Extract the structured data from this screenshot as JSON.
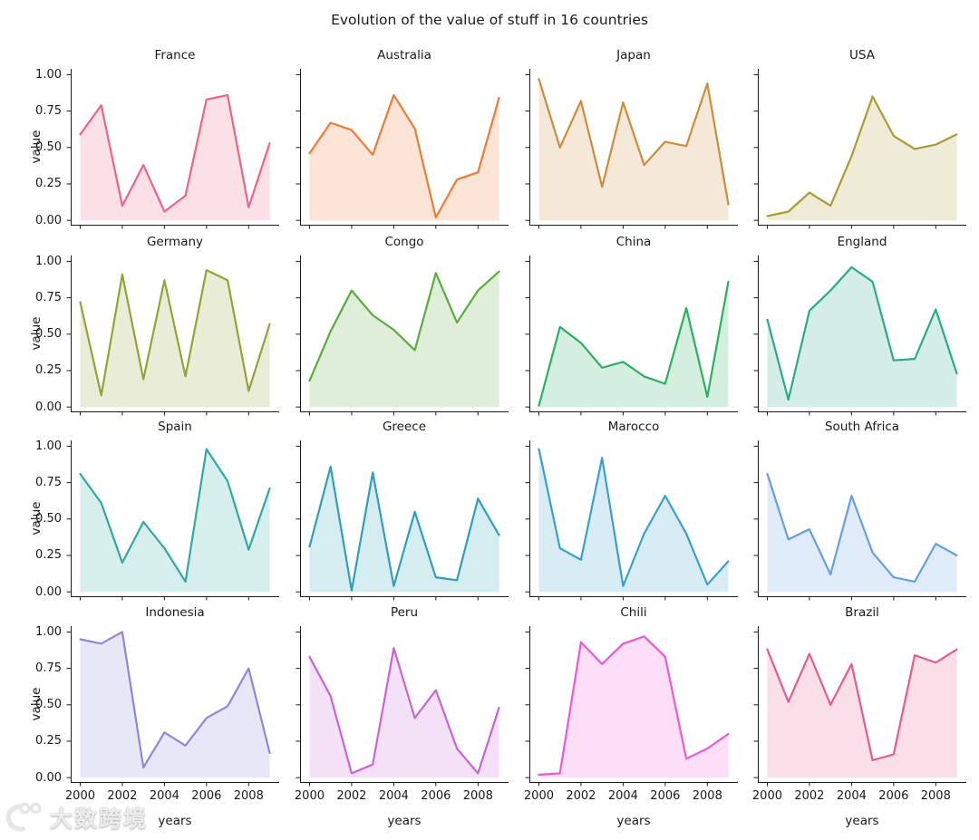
{
  "figure_title": "Evolution of the value of stuff in 16 countries",
  "axis": {
    "ylabel": "value",
    "xlabel": "years",
    "ytick_labels": [
      "1.00",
      "0.75",
      "0.50",
      "0.25",
      "0.00"
    ],
    "ytick_values": [
      1.0,
      0.75,
      0.5,
      0.25,
      0.0
    ],
    "xtick_labels": [
      "2000",
      "2002",
      "2004",
      "2006",
      "2008"
    ],
    "xtick_values": [
      2000,
      2002,
      2004,
      2006,
      2008
    ]
  },
  "watermark": {
    "text": "大数跨境",
    "logo": "100-swirl-icon"
  },
  "chart_data": {
    "type": "area",
    "layout": "4x4 small multiples",
    "title": "Evolution of the value of stuff in 16 countries",
    "xlabel": "years",
    "ylabel": "value",
    "ylim": [
      0.0,
      1.0
    ],
    "grid": false,
    "legend": "none",
    "x": [
      2000,
      2001,
      2002,
      2003,
      2004,
      2005,
      2006,
      2007,
      2008,
      2009
    ],
    "series": [
      {
        "name": "France",
        "color": "#ec6486",
        "values": [
          0.59,
          0.79,
          0.1,
          0.38,
          0.06,
          0.17,
          0.83,
          0.86,
          0.09,
          0.53
        ]
      },
      {
        "name": "Australia",
        "color": "#ee7b38",
        "values": [
          0.46,
          0.67,
          0.62,
          0.45,
          0.86,
          0.63,
          0.02,
          0.28,
          0.33,
          0.84
        ]
      },
      {
        "name": "Japan",
        "color": "#cd8c3c",
        "values": [
          0.97,
          0.5,
          0.82,
          0.23,
          0.81,
          0.38,
          0.54,
          0.51,
          0.94,
          0.11
        ]
      },
      {
        "name": "USA",
        "color": "#aa9c33",
        "values": [
          0.03,
          0.06,
          0.19,
          0.1,
          0.44,
          0.85,
          0.58,
          0.49,
          0.52,
          0.59
        ]
      },
      {
        "name": "Germany",
        "color": "#8fa636",
        "values": [
          0.72,
          0.08,
          0.91,
          0.19,
          0.87,
          0.21,
          0.94,
          0.87,
          0.11,
          0.57
        ]
      },
      {
        "name": "Congo",
        "color": "#5bab3e",
        "values": [
          0.18,
          0.52,
          0.8,
          0.63,
          0.53,
          0.39,
          0.92,
          0.58,
          0.8,
          0.93
        ]
      },
      {
        "name": "China",
        "color": "#2ab05f",
        "values": [
          0.01,
          0.55,
          0.44,
          0.27,
          0.31,
          0.21,
          0.16,
          0.68,
          0.07,
          0.86
        ]
      },
      {
        "name": "England",
        "color": "#2aab87",
        "values": [
          0.6,
          0.05,
          0.66,
          0.8,
          0.96,
          0.86,
          0.32,
          0.33,
          0.67,
          0.23
        ]
      },
      {
        "name": "Spain",
        "color": "#31a8a2",
        "values": [
          0.81,
          0.61,
          0.2,
          0.48,
          0.3,
          0.07,
          0.98,
          0.76,
          0.29,
          0.71
        ]
      },
      {
        "name": "Greece",
        "color": "#2f9fb8",
        "values": [
          0.31,
          0.86,
          0.01,
          0.82,
          0.04,
          0.55,
          0.1,
          0.08,
          0.64,
          0.39
        ]
      },
      {
        "name": "Marocco",
        "color": "#3b9fce",
        "values": [
          0.98,
          0.3,
          0.22,
          0.92,
          0.04,
          0.4,
          0.66,
          0.4,
          0.05,
          0.21
        ]
      },
      {
        "name": "South Africa",
        "color": "#659fe3",
        "values": [
          0.81,
          0.36,
          0.43,
          0.12,
          0.66,
          0.27,
          0.1,
          0.07,
          0.33,
          0.25
        ]
      },
      {
        "name": "Indonesia",
        "color": "#8d87dd",
        "values": [
          0.95,
          0.92,
          1.0,
          0.07,
          0.31,
          0.22,
          0.41,
          0.49,
          0.75,
          0.17
        ]
      },
      {
        "name": "Peru",
        "color": "#ca63d6",
        "values": [
          0.83,
          0.56,
          0.03,
          0.09,
          0.89,
          0.41,
          0.6,
          0.2,
          0.03,
          0.48
        ]
      },
      {
        "name": "Chili",
        "color": "#ef58d0",
        "values": [
          0.02,
          0.03,
          0.93,
          0.78,
          0.92,
          0.97,
          0.83,
          0.13,
          0.2,
          0.3
        ]
      },
      {
        "name": "Brazil",
        "color": "#e75a8e",
        "values": [
          0.88,
          0.52,
          0.85,
          0.5,
          0.78,
          0.12,
          0.16,
          0.84,
          0.79,
          0.88
        ]
      }
    ]
  }
}
